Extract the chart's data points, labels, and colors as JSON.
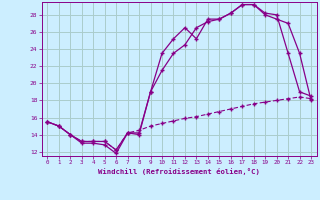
{
  "xlabel": "Windchill (Refroidissement éolien,°C)",
  "bg_color": "#cceeff",
  "grid_color": "#aacccc",
  "line_color": "#880088",
  "xlim": [
    -0.5,
    23.5
  ],
  "ylim": [
    11.5,
    29.5
  ],
  "xticks": [
    0,
    1,
    2,
    3,
    4,
    5,
    6,
    7,
    8,
    9,
    10,
    11,
    12,
    13,
    14,
    15,
    16,
    17,
    18,
    19,
    20,
    21,
    22,
    23
  ],
  "yticks": [
    12,
    14,
    16,
    18,
    20,
    22,
    24,
    26,
    28
  ],
  "line1_x": [
    0,
    1,
    2,
    3,
    4,
    5,
    6,
    7,
    8,
    9,
    10,
    11,
    12,
    13,
    14,
    15,
    16,
    17,
    18,
    19,
    20,
    21,
    22,
    23
  ],
  "line1_y": [
    15.5,
    15.0,
    14.0,
    13.0,
    13.0,
    12.8,
    11.8,
    14.2,
    14.2,
    19.0,
    23.5,
    25.2,
    26.5,
    25.2,
    27.5,
    27.5,
    28.2,
    29.2,
    29.2,
    28.2,
    28.0,
    23.5,
    19.0,
    18.5
  ],
  "line2_x": [
    0,
    1,
    2,
    3,
    4,
    5,
    6,
    7,
    8,
    9,
    10,
    11,
    12,
    13,
    14,
    15,
    16,
    17,
    18,
    19,
    20,
    21,
    22,
    23
  ],
  "line2_y": [
    15.5,
    15.0,
    14.0,
    13.2,
    13.2,
    13.2,
    12.2,
    14.2,
    14.0,
    19.0,
    21.5,
    23.5,
    24.5,
    26.5,
    27.2,
    27.5,
    28.2,
    29.2,
    29.2,
    28.0,
    27.5,
    27.0,
    23.5,
    18.0
  ],
  "line3_x": [
    0,
    1,
    2,
    3,
    4,
    5,
    6,
    7,
    8,
    9,
    10,
    11,
    12,
    13,
    14,
    15,
    16,
    17,
    18,
    19,
    20,
    21,
    22,
    23
  ],
  "line3_y": [
    15.5,
    15.0,
    14.0,
    13.2,
    13.2,
    13.2,
    12.2,
    14.2,
    14.5,
    15.0,
    15.3,
    15.6,
    15.9,
    16.1,
    16.4,
    16.7,
    17.0,
    17.3,
    17.6,
    17.8,
    18.0,
    18.2,
    18.4,
    18.2
  ]
}
